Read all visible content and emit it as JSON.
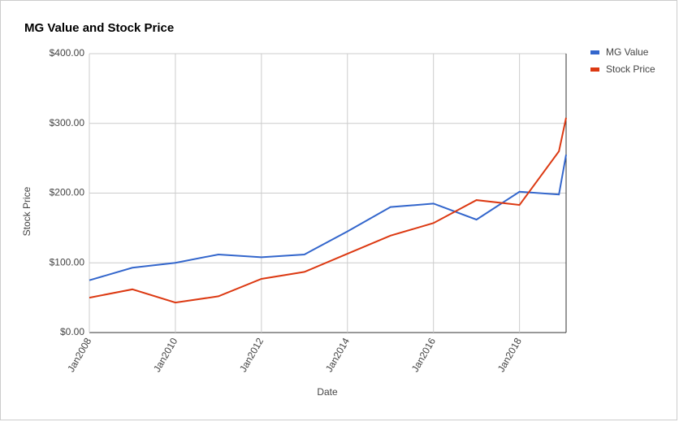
{
  "chart_data": {
    "type": "line",
    "title": "MG Value and Stock Price",
    "x_label": "Date",
    "y_label": "Stock Price",
    "x": [
      "2008-01",
      "2009-01",
      "2010-01",
      "2011-01",
      "2012-01",
      "2013-01",
      "2014-01",
      "2015-01",
      "2016-01",
      "2017-01",
      "2018-01",
      "2018-12",
      "2019-02"
    ],
    "series": [
      {
        "name": "MG Value",
        "color": "#3366cc",
        "values": [
          75,
          93,
          100,
          112,
          108,
          112,
          145,
          180,
          185,
          162,
          202,
          198,
          255
        ]
      },
      {
        "name": "Stock Price",
        "color": "#dc3912",
        "values": [
          50,
          62,
          43,
          52,
          77,
          87,
          113,
          139,
          157,
          190,
          183,
          260,
          308
        ]
      }
    ],
    "xlim": [
      "2008-01",
      "2019-02"
    ],
    "xticks": [
      {
        "value": "2008-01",
        "label": "Jan2008"
      },
      {
        "value": "2010-01",
        "label": "Jan2010"
      },
      {
        "value": "2012-01",
        "label": "Jan2012"
      },
      {
        "value": "2014-01",
        "label": "Jan2014"
      },
      {
        "value": "2016-01",
        "label": "Jan2016"
      },
      {
        "value": "2018-01",
        "label": "Jan2018"
      }
    ],
    "ylim": [
      0,
      400
    ],
    "yticks": [
      {
        "value": 0,
        "label": "$0.00"
      },
      {
        "value": 100,
        "label": "$100.00"
      },
      {
        "value": 200,
        "label": "$200.00"
      },
      {
        "value": 300,
        "label": "$300.00"
      },
      {
        "value": 400,
        "label": "$400.00"
      }
    ],
    "grid": true,
    "legend": "right"
  }
}
